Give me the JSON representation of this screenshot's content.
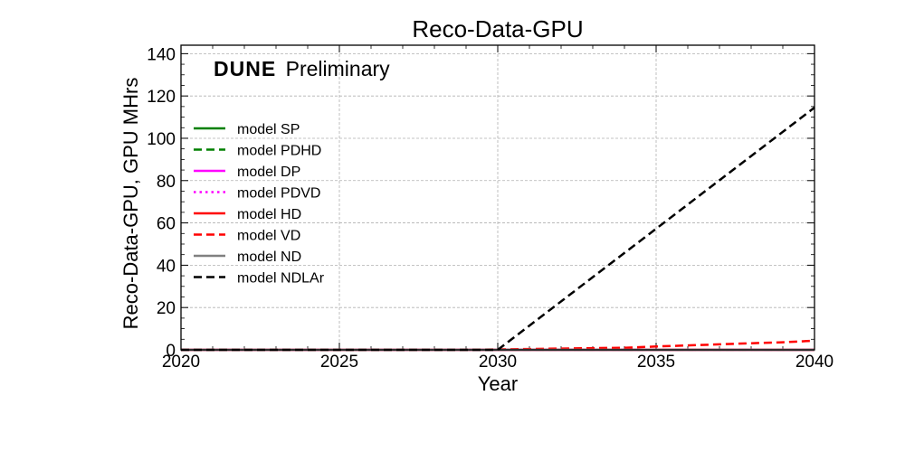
{
  "chart_data": {
    "type": "line",
    "title": "Reco-Data-GPU",
    "xlabel": "Year",
    "ylabel": "Reco-Data-GPU, GPU MHrs",
    "xlim": [
      2020,
      2040
    ],
    "ylim": [
      0,
      144
    ],
    "xticks": [
      2020,
      2025,
      2030,
      2035,
      2040
    ],
    "yticks": [
      0,
      20,
      40,
      60,
      80,
      100,
      120,
      140
    ],
    "grid": true,
    "legend_position": "left",
    "brand": {
      "bold": "DUNE",
      "rest": "Preliminary"
    },
    "series": [
      {
        "name": "model SP",
        "color": "#008000",
        "dash": "solid",
        "x": [
          2020,
          2040
        ],
        "y": [
          0,
          0
        ]
      },
      {
        "name": "model PDHD",
        "color": "#008000",
        "dash": "dashed",
        "x": [
          2020,
          2040
        ],
        "y": [
          0,
          0
        ]
      },
      {
        "name": "model DP",
        "color": "#ff00ff",
        "dash": "solid",
        "x": [
          2020,
          2040
        ],
        "y": [
          0,
          0
        ]
      },
      {
        "name": "model PDVD",
        "color": "#ff00ff",
        "dash": "dotted",
        "x": [
          2020,
          2040
        ],
        "y": [
          0,
          0
        ]
      },
      {
        "name": "model HD",
        "color": "#ff0000",
        "dash": "solid",
        "x": [
          2020,
          2040
        ],
        "y": [
          0,
          0
        ]
      },
      {
        "name": "model VD",
        "color": "#ff0000",
        "dash": "dashed",
        "x": [
          2020,
          2029,
          2030,
          2031,
          2032,
          2033,
          2034,
          2035,
          2036,
          2037,
          2038,
          2039,
          2040
        ],
        "y": [
          0,
          0,
          0.2,
          0.4,
          0.6,
          0.8,
          1.0,
          1.6,
          2.1,
          2.6,
          3.1,
          3.6,
          4.3
        ]
      },
      {
        "name": "model ND",
        "color": "#808080",
        "dash": "solid",
        "x": [
          2020,
          2040
        ],
        "y": [
          0,
          0
        ]
      },
      {
        "name": "model NDLAr",
        "color": "#000000",
        "dash": "dashed",
        "x": [
          2020,
          2030,
          2040
        ],
        "y": [
          0,
          0,
          114.5
        ]
      }
    ]
  }
}
